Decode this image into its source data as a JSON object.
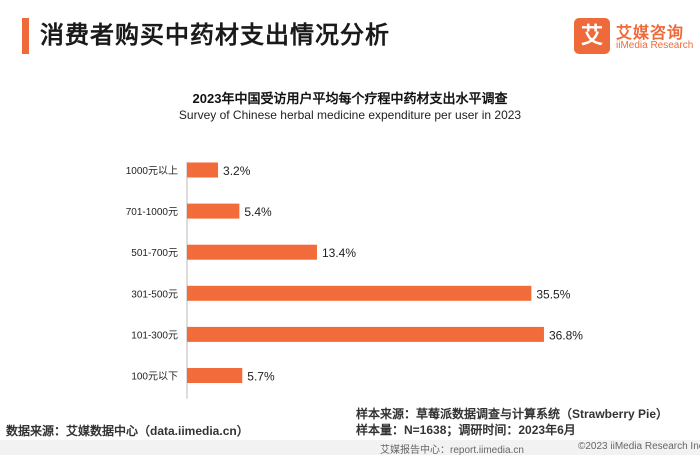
{
  "header": {
    "title": "消费者购买中药材支出情况分析",
    "logo_mark": "艾",
    "logo_cn": "艾媒咨询",
    "logo_en": "iiMedia Research"
  },
  "colors": {
    "accent": "#ef6a3a",
    "bar": "#f26b3a"
  },
  "chart_data": {
    "type": "bar",
    "orientation": "horizontal",
    "title": "2023年中国受访用户平均每个疗程中药材支出水平调查",
    "subtitle": "Survey of Chinese herbal medicine expenditure per user in 2023",
    "categories": [
      "1000元以上",
      "701-1000元",
      "501-700元",
      "301-500元",
      "101-300元",
      "100元以下"
    ],
    "values": [
      3.2,
      5.4,
      13.4,
      35.5,
      36.8,
      5.7
    ],
    "value_labels": [
      "3.2%",
      "5.4%",
      "13.4%",
      "35.5%",
      "36.8%",
      "5.7%"
    ],
    "unit": "%",
    "xlim": [
      0,
      40
    ]
  },
  "footer": {
    "source": "数据来源：艾媒数据中心（data.iimedia.cn）",
    "sample_source": "样本来源：草莓派数据调查与计算系统（Strawberry Pie）",
    "sample_size": "样本量：N=1638；调研时间：2023年6月",
    "report_site": "艾媒报告中心：report.iimedia.cn",
    "copyright": "©2023  iiMedia Research  Inc"
  }
}
